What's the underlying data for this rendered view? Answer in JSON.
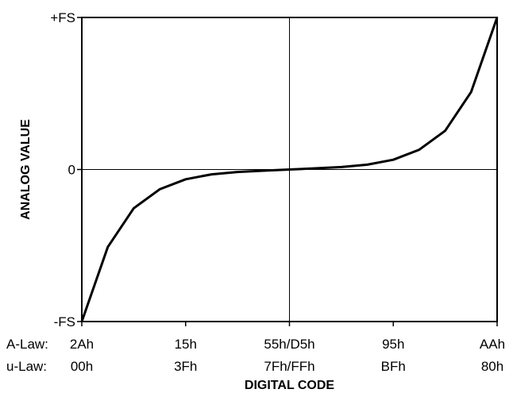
{
  "chart_data": {
    "type": "line",
    "title": "",
    "xlabel": "DIGITAL CODE",
    "ylabel": "ANALOG VALUE",
    "y_ticks": [
      {
        "value": 1,
        "label": "+FS"
      },
      {
        "value": 0,
        "label": "0"
      },
      {
        "value": -1,
        "label": "-FS"
      }
    ],
    "x_ticks": [
      {
        "value": 0,
        "a_law": "2Ah",
        "u_law": "00h"
      },
      {
        "value": 0.25,
        "a_law": "15h",
        "u_law": "3Fh"
      },
      {
        "value": 0.5,
        "a_law": "55h/D5h",
        "u_law": "7Fh/FFh"
      },
      {
        "value": 0.75,
        "a_law": "95h",
        "u_law": "BFh"
      },
      {
        "value": 1,
        "a_law": "AAh",
        "u_law": "80h"
      }
    ],
    "row_labels": {
      "a_law": "A-Law:",
      "u_law": "u-Law:"
    },
    "xlim": [
      0,
      1
    ],
    "ylim": [
      -1,
      1
    ],
    "crosshair": {
      "x": 0.5,
      "y": 0
    },
    "series": [
      {
        "x": [
          0,
          0.0625,
          0.125,
          0.1875,
          0.25,
          0.3125,
          0.375,
          0.4375,
          0.5,
          0.5625,
          0.625,
          0.6875,
          0.75,
          0.8125,
          0.875,
          0.9375,
          1
        ],
        "y": [
          -1,
          -0.51,
          -0.255,
          -0.13,
          -0.064,
          -0.032,
          -0.016,
          -0.008,
          0,
          0.008,
          0.016,
          0.032,
          0.064,
          0.13,
          0.255,
          0.51,
          1
        ]
      }
    ]
  }
}
